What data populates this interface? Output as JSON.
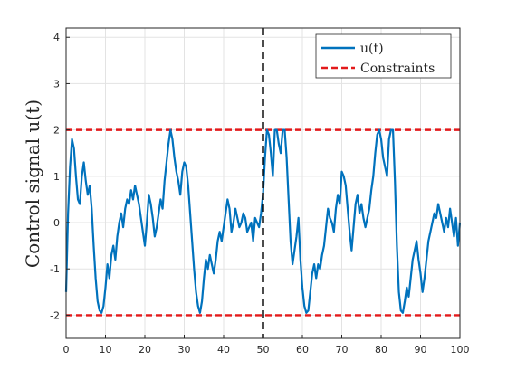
{
  "chart_data": {
    "type": "line",
    "ylabel": "Control signal u(t)",
    "xlim": [
      0,
      100
    ],
    "ylim": [
      -2.5,
      4.2
    ],
    "xticks": [
      "0",
      "10",
      "20",
      "30",
      "40",
      "50",
      "60",
      "70",
      "80",
      "90",
      "100"
    ],
    "yticks": [
      "-2",
      "-1",
      "0",
      "1",
      "2",
      "3",
      "4"
    ],
    "grid": true,
    "legend_position": "top-right",
    "legend": [
      "u(t)",
      "Constraints"
    ],
    "colors": {
      "signal": "#0072BD",
      "constraint": "#E31A1C",
      "vline": "#000000"
    },
    "constraints": {
      "upper": 2,
      "lower": -2
    },
    "vertical_line_x": 50,
    "series": [
      {
        "name": "u(t)",
        "x": [
          0,
          0.5,
          1,
          1.5,
          2,
          2.5,
          3,
          3.5,
          4,
          4.5,
          5,
          5.5,
          6,
          6.5,
          7,
          7.5,
          8,
          8.5,
          9,
          9.5,
          10,
          10.5,
          11,
          11.5,
          12,
          12.5,
          13,
          13.5,
          14,
          14.5,
          15,
          15.5,
          16,
          16.5,
          17,
          17.5,
          18,
          18.5,
          19,
          19.5,
          20,
          20.5,
          21,
          21.5,
          22,
          22.5,
          23,
          23.5,
          24,
          24.5,
          25,
          25.5,
          26,
          26.5,
          27,
          27.5,
          28,
          28.5,
          29,
          29.5,
          30,
          30.5,
          31,
          31.5,
          32,
          32.5,
          33,
          33.5,
          34,
          34.5,
          35,
          35.5,
          36,
          36.5,
          37,
          37.5,
          38,
          38.5,
          39,
          39.5,
          40,
          40.5,
          41,
          41.5,
          42,
          42.5,
          43,
          43.5,
          44,
          44.5,
          45,
          45.5,
          46,
          46.5,
          47,
          47.5,
          48,
          48.5,
          49,
          49.5,
          50,
          50.5,
          51,
          51.5,
          52,
          52.5,
          53,
          53.5,
          54,
          54.5,
          55,
          55.5,
          56,
          56.5,
          57,
          57.5,
          58,
          58.5,
          59,
          59.5,
          60,
          60.5,
          61,
          61.5,
          62,
          62.5,
          63,
          63.5,
          64,
          64.5,
          65,
          65.5,
          66,
          66.5,
          67,
          67.5,
          68,
          68.5,
          69,
          69.5,
          70,
          70.5,
          71,
          71.5,
          72,
          72.5,
          73,
          73.5,
          74,
          74.5,
          75,
          75.5,
          76,
          76.5,
          77,
          77.5,
          78,
          78.5,
          79,
          79.5,
          80,
          80.5,
          81,
          81.5,
          82,
          82.5,
          83,
          83.5,
          84,
          84.5,
          85,
          85.5,
          86,
          86.5,
          87,
          87.5,
          88,
          88.5,
          89,
          89.5,
          90,
          90.5,
          91,
          91.5,
          92,
          92.5,
          93,
          93.5,
          94,
          94.5,
          95,
          95.5,
          96,
          96.5,
          97,
          97.5,
          98,
          98.5,
          99,
          99.5,
          100
        ],
        "y": [
          -1.5,
          0.2,
          1.2,
          1.8,
          1.6,
          1.0,
          0.5,
          0.4,
          1.0,
          1.3,
          0.9,
          0.6,
          0.8,
          0.3,
          -0.5,
          -1.2,
          -1.7,
          -1.9,
          -1.95,
          -1.8,
          -1.4,
          -0.9,
          -1.2,
          -0.7,
          -0.5,
          -0.8,
          -0.3,
          0.0,
          0.2,
          -0.1,
          0.3,
          0.5,
          0.4,
          0.7,
          0.5,
          0.8,
          0.6,
          0.4,
          0.1,
          -0.2,
          -0.5,
          0.0,
          0.6,
          0.4,
          0.1,
          -0.3,
          -0.1,
          0.2,
          0.5,
          0.3,
          0.9,
          1.3,
          1.7,
          2.0,
          1.8,
          1.4,
          1.1,
          0.9,
          0.6,
          1.1,
          1.3,
          1.2,
          0.8,
          0.2,
          -0.4,
          -1.0,
          -1.5,
          -1.8,
          -1.95,
          -1.7,
          -1.2,
          -0.8,
          -1.0,
          -0.7,
          -0.9,
          -1.1,
          -0.8,
          -0.4,
          -0.2,
          -0.4,
          -0.1,
          0.2,
          0.5,
          0.3,
          -0.2,
          0.0,
          0.3,
          0.1,
          -0.1,
          0.0,
          0.2,
          0.1,
          -0.2,
          -0.1,
          0.0,
          -0.4,
          0.1,
          0.0,
          -0.1,
          0.2,
          0.6,
          1.4,
          2.0,
          1.9,
          1.5,
          1.0,
          2.0,
          2.0,
          1.7,
          1.5,
          2.0,
          2.0,
          1.4,
          0.5,
          -0.4,
          -0.9,
          -0.6,
          -0.3,
          0.1,
          -0.8,
          -1.4,
          -1.8,
          -1.95,
          -1.9,
          -1.5,
          -1.1,
          -0.9,
          -1.2,
          -0.9,
          -1.0,
          -0.7,
          -0.5,
          -0.1,
          0.3,
          0.1,
          0.0,
          -0.2,
          0.3,
          0.6,
          0.4,
          1.1,
          1.0,
          0.8,
          0.3,
          -0.2,
          -0.6,
          -0.1,
          0.4,
          0.6,
          0.2,
          0.4,
          0.1,
          -0.1,
          0.1,
          0.3,
          0.7,
          1.0,
          1.5,
          1.9,
          2.0,
          1.8,
          1.4,
          1.2,
          1.0,
          1.8,
          2.0,
          2.0,
          0.9,
          -0.5,
          -1.5,
          -1.9,
          -1.95,
          -1.7,
          -1.4,
          -1.6,
          -1.2,
          -0.8,
          -0.6,
          -0.4,
          -0.8,
          -1.1,
          -1.5,
          -1.2,
          -0.8,
          -0.4,
          -0.2,
          0.0,
          0.2,
          0.1,
          0.4,
          0.2,
          0.0,
          -0.2,
          0.1,
          -0.1,
          0.3,
          0.0,
          -0.3,
          0.1,
          -0.5,
          0.0
        ]
      }
    ]
  }
}
